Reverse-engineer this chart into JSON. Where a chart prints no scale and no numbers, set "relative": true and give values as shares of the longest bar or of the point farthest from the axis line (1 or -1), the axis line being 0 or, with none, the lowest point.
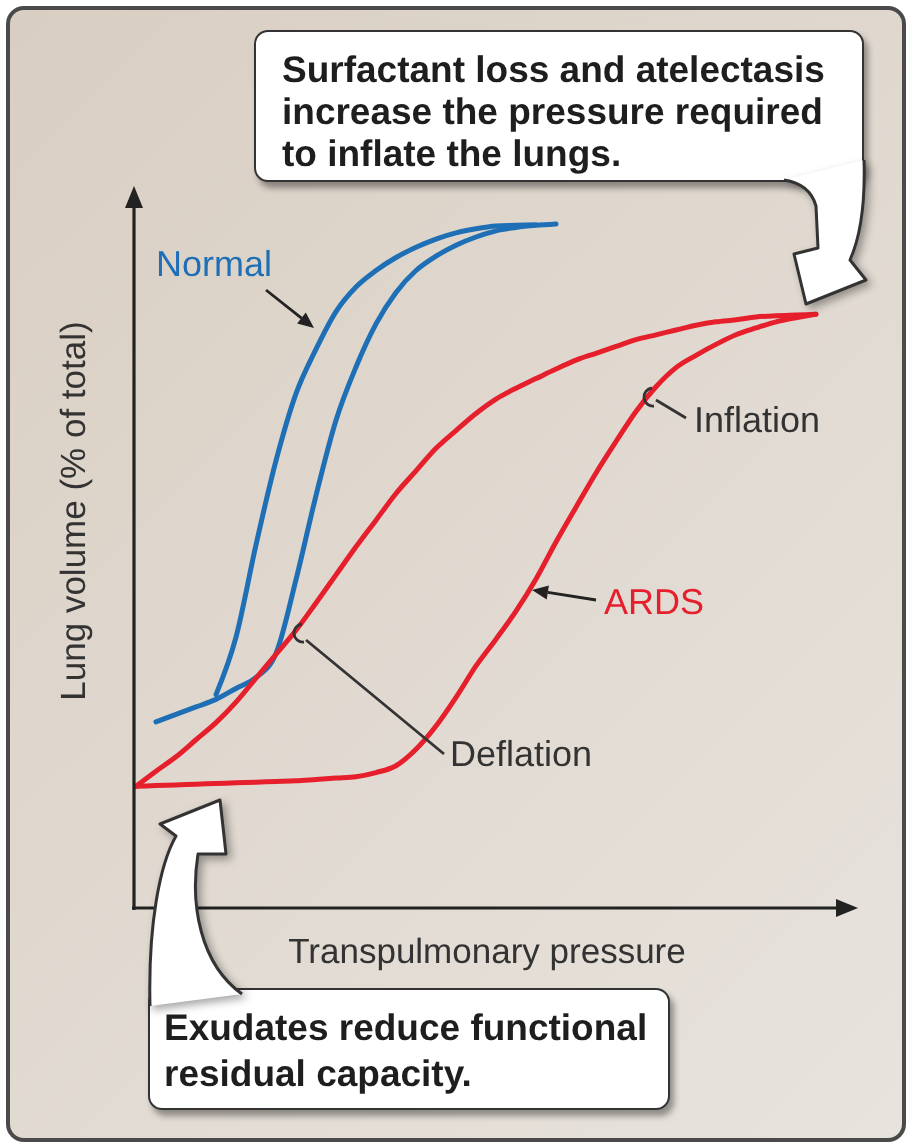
{
  "chart_data": {
    "type": "line",
    "xlabel": "Transpulmonary pressure",
    "ylabel": "Lung volume (% of total)",
    "relative": true,
    "categories": [
      null,
      null,
      null,
      null,
      null,
      null,
      null,
      null,
      null,
      null,
      null,
      null,
      null,
      null,
      null,
      null,
      null,
      null,
      null,
      null,
      null,
      null,
      null,
      null,
      null,
      null,
      null,
      null,
      null,
      null,
      null,
      null,
      null,
      null,
      null
    ],
    "series": [
      {
        "color": "#1e6fb6",
        "values": [
          null,
          0.272,
          0.283,
          0.294,
          0.305,
          0.321,
          0.337,
          0.372,
          0.48,
          0.603,
          0.713,
          0.791,
          0.854,
          0.9,
          0.932,
          0.953,
          0.969,
          0.981,
          0.99,
          0.995,
          0.998,
          1,
          null,
          null,
          null,
          null,
          null,
          null,
          null,
          null,
          null,
          null,
          null,
          null,
          null
        ]
      },
      {
        "name": "Normal",
        "color": "#1e6fb6",
        "values": [
          null,
          null,
          null,
          null,
          0.312,
          0.396,
          0.531,
          0.654,
          0.752,
          0.817,
          0.872,
          0.908,
          0.932,
          0.951,
          0.966,
          0.978,
          0.987,
          0.993,
          0.997,
          0.998,
          0.999,
          null,
          null,
          null,
          null,
          null,
          null,
          null,
          null,
          null,
          null,
          null,
          null,
          null,
          null
        ]
      },
      {
        "color": "#e5202c",
        "values": [
          0.178,
          0.2,
          0.221,
          0.246,
          0.271,
          0.301,
          0.336,
          0.371,
          0.406,
          0.446,
          0.487,
          0.528,
          0.567,
          0.606,
          0.639,
          0.672,
          0.698,
          0.723,
          0.744,
          0.76,
          0.774,
          0.788,
          0.801,
          0.811,
          0.821,
          0.831,
          0.838,
          0.845,
          0.852,
          0.857,
          0.86,
          0.864,
          0.866,
          0.867,
          0.868
        ]
      },
      {
        "name": "ARDS",
        "color": "#e5202c",
        "values": [
          0.178,
          0.179,
          0.18,
          0.181,
          0.182,
          0.183,
          0.184,
          0.185,
          0.186,
          0.188,
          0.19,
          0.192,
          0.198,
          0.208,
          0.232,
          0.266,
          0.308,
          0.354,
          0.393,
          0.434,
          0.481,
          0.535,
          0.586,
          0.636,
          0.682,
          0.726,
          0.762,
          0.79,
          0.808,
          0.824,
          0.838,
          0.848,
          0.857,
          0.863,
          0.868
        ]
      }
    ],
    "annotations": [
      "Surfactant loss and atelectasis increase the pressure required to inflate the lungs.",
      "Exudates reduce functional residual capacity.",
      "Inflation",
      "Deflation"
    ],
    "grid": false,
    "legend": false,
    "tick_labels": false
  }
}
